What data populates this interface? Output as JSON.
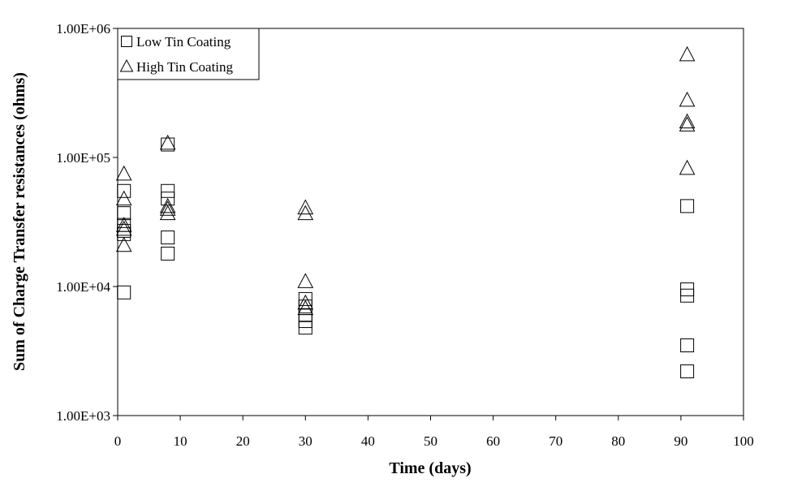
{
  "chart_data": {
    "type": "scatter",
    "title": "",
    "xlabel": "Time (days)",
    "ylabel": "Sum of Charge Transfer resistances (ohms)",
    "xlim": [
      0,
      100
    ],
    "ylim": [
      1000,
      1000000
    ],
    "y_scale": "log",
    "grid": false,
    "legend_position": "top-left",
    "x_ticks": [
      0,
      10,
      20,
      30,
      40,
      50,
      60,
      70,
      80,
      90,
      100
    ],
    "x_tick_labels": [
      "0",
      "10",
      "20",
      "30",
      "40",
      "50",
      "60",
      "70",
      "80",
      "90",
      "100"
    ],
    "y_ticks": [
      1000,
      10000,
      100000,
      1000000
    ],
    "y_tick_labels": [
      "1.00E+03",
      "1.00E+04",
      "1.00E+05",
      "1.00E+06"
    ],
    "series": [
      {
        "name": "Low Tin Coating",
        "marker": "square",
        "color": "#000000",
        "points": [
          {
            "x": 1,
            "y": 55000
          },
          {
            "x": 1,
            "y": 37000
          },
          {
            "x": 1,
            "y": 30000
          },
          {
            "x": 1,
            "y": 27000
          },
          {
            "x": 1,
            "y": 25500
          },
          {
            "x": 1,
            "y": 9000
          },
          {
            "x": 8,
            "y": 126000
          },
          {
            "x": 8,
            "y": 55000
          },
          {
            "x": 8,
            "y": 48000
          },
          {
            "x": 8,
            "y": 24000
          },
          {
            "x": 8,
            "y": 18000
          },
          {
            "x": 30,
            "y": 8000
          },
          {
            "x": 30,
            "y": 7000
          },
          {
            "x": 30,
            "y": 6000
          },
          {
            "x": 30,
            "y": 5400
          },
          {
            "x": 30,
            "y": 4800
          },
          {
            "x": 91,
            "y": 42000
          },
          {
            "x": 91,
            "y": 9500
          },
          {
            "x": 91,
            "y": 8500
          },
          {
            "x": 91,
            "y": 3500
          },
          {
            "x": 91,
            "y": 2200
          }
        ]
      },
      {
        "name": "High Tin Coating",
        "marker": "triangle",
        "color": "#000000",
        "points": [
          {
            "x": 1,
            "y": 75000
          },
          {
            "x": 1,
            "y": 48000
          },
          {
            "x": 1,
            "y": 30000
          },
          {
            "x": 1,
            "y": 28000
          },
          {
            "x": 1,
            "y": 21000
          },
          {
            "x": 8,
            "y": 130000
          },
          {
            "x": 8,
            "y": 42000
          },
          {
            "x": 8,
            "y": 40000
          },
          {
            "x": 8,
            "y": 37000
          },
          {
            "x": 30,
            "y": 41000
          },
          {
            "x": 30,
            "y": 37000
          },
          {
            "x": 30,
            "y": 11000
          },
          {
            "x": 30,
            "y": 7500
          },
          {
            "x": 30,
            "y": 6800
          },
          {
            "x": 91,
            "y": 630000
          },
          {
            "x": 91,
            "y": 280000
          },
          {
            "x": 91,
            "y": 190000
          },
          {
            "x": 91,
            "y": 180000
          },
          {
            "x": 91,
            "y": 83000
          }
        ]
      }
    ]
  }
}
